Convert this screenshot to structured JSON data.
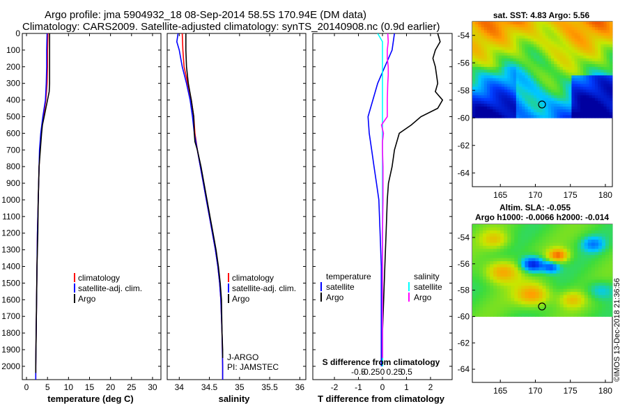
{
  "title_line1": "Argo profile: jma 5904932_18 08-Sep-2014 58.5S 170.94E (DM data)",
  "title_line2": "Climatology: CARS2009. Satellite-adjusted climatology: synTS_20140908.nc (0.9d earlier)",
  "depth_ticks": [
    "0",
    "100",
    "200",
    "300",
    "400",
    "500",
    "600",
    "700",
    "800",
    "900",
    "1000",
    "1100",
    "1200",
    "1300",
    "1400",
    "1500",
    "1600",
    "1700",
    "1800",
    "1900",
    "2000"
  ],
  "colors": {
    "climatology": "#ff0000",
    "satellite": "#0000ff",
    "argo": "#000000",
    "s_satellite": "#00ffff",
    "s_argo": "#ff00ff"
  },
  "chart_data": [
    {
      "type": "line",
      "xlabel": "temperature (deg C)",
      "xlim": [
        -1,
        32
      ],
      "xticks": [
        "0",
        "5",
        "10",
        "15",
        "20",
        "25",
        "30"
      ],
      "ylim": [
        2080,
        0
      ],
      "legend": {
        "items": [
          "climatology",
          "satellite-adj. clim.",
          "Argo"
        ]
      },
      "series": [
        {
          "name": "climatology",
          "y": [
            0,
            100,
            200,
            300,
            400,
            500,
            600,
            700,
            800,
            900,
            1000,
            1200,
            1400,
            1600,
            1800,
            2000,
            2080
          ],
          "values": [
            5.1,
            5.0,
            5.0,
            4.9,
            4.6,
            4.0,
            3.5,
            3.2,
            3.0,
            2.9,
            2.8,
            2.6,
            2.5,
            2.4,
            2.3,
            2.2,
            2.2
          ]
        },
        {
          "name": "satellite-adj. clim.",
          "y": [
            0,
            100,
            200,
            300,
            400,
            500,
            600,
            700,
            800,
            900,
            1000,
            1200,
            1400,
            1600,
            1800,
            2000,
            2080
          ],
          "values": [
            4.9,
            4.8,
            4.8,
            4.7,
            4.5,
            3.9,
            3.4,
            3.1,
            3.0,
            2.9,
            2.8,
            2.6,
            2.5,
            2.4,
            2.3,
            2.2,
            2.2
          ]
        },
        {
          "name": "Argo",
          "y": [
            0,
            50,
            100,
            150,
            200,
            300,
            350,
            400,
            450,
            500,
            550,
            600,
            700,
            800,
            900,
            1000,
            1200,
            1400,
            1600,
            1800,
            2000,
            2040
          ],
          "values": [
            5.5,
            5.5,
            5.5,
            5.5,
            5.5,
            5.5,
            5.4,
            5.0,
            4.6,
            4.2,
            3.8,
            3.6,
            3.3,
            3.0,
            2.9,
            2.8,
            2.7,
            2.5,
            2.4,
            2.3,
            2.2,
            2.2
          ]
        }
      ]
    },
    {
      "type": "line",
      "xlabel": "salinity",
      "xlim": [
        33.8,
        36.1
      ],
      "xticks": [
        "34",
        "34.5",
        "35",
        "35.5",
        "36"
      ],
      "ylim": [
        2080,
        0
      ],
      "legend": {
        "items": [
          "climatology",
          "satellite-adj. clim.",
          "Argo"
        ]
      },
      "annotations": [
        "J-ARGO",
        "PI: JAMSTEC"
      ],
      "series": [
        {
          "name": "climatology",
          "y": [
            0,
            100,
            200,
            300,
            400,
            500,
            600,
            700,
            800,
            900,
            1000,
            1100,
            1200,
            1300,
            1400,
            1500,
            1600,
            1800,
            2000,
            2080
          ],
          "values": [
            34.05,
            34.06,
            34.08,
            34.14,
            34.2,
            34.24,
            34.26,
            34.3,
            34.35,
            34.4,
            34.45,
            34.5,
            34.55,
            34.6,
            34.64,
            34.67,
            34.69,
            34.71,
            34.72,
            34.72
          ]
        },
        {
          "name": "satellite-adj. clim.",
          "y": [
            0,
            50,
            100,
            200,
            300,
            400,
            500,
            600,
            700,
            800,
            900,
            1000,
            1100,
            1200,
            1300,
            1400,
            1500,
            1600,
            1800,
            2000,
            2080
          ],
          "values": [
            33.98,
            33.96,
            34.0,
            34.05,
            34.12,
            34.18,
            34.22,
            34.25,
            34.3,
            34.35,
            34.4,
            34.45,
            34.5,
            34.55,
            34.6,
            34.64,
            34.67,
            34.69,
            34.71,
            34.72,
            34.72
          ]
        },
        {
          "name": "Argo",
          "y": [
            0,
            100,
            200,
            300,
            400,
            500,
            600,
            650,
            700,
            800,
            900,
            1000,
            1100,
            1200,
            1300,
            1400,
            1500,
            1600,
            1800,
            1900,
            1950
          ],
          "values": [
            34.11,
            34.11,
            34.12,
            34.15,
            34.2,
            34.24,
            34.25,
            34.26,
            34.3,
            34.36,
            34.41,
            34.46,
            34.51,
            34.56,
            34.61,
            34.65,
            34.68,
            34.7,
            34.71,
            34.72,
            34.72
          ]
        }
      ]
    },
    {
      "type": "line",
      "xlabel": "T difference from climatology",
      "xlabel2": "S difference from climatology",
      "xlim": [
        -2.9,
        2.9
      ],
      "xticks": [
        "-2",
        "-1",
        "0",
        "1",
        "2"
      ],
      "xticks_salinity": [
        "-0.5",
        "-0.25",
        "0",
        "0.25",
        "0.5"
      ],
      "ylim": [
        2080,
        0
      ],
      "legend_left": {
        "title": "temperature",
        "items": [
          "satellite",
          "Argo"
        ]
      },
      "legend_right": {
        "title": "salinity",
        "items": [
          "satellite",
          "Argo"
        ]
      },
      "series": [
        {
          "name": "temperature satellite",
          "y": [
            0,
            100,
            200,
            300,
            400,
            500,
            600,
            700,
            800,
            900,
            1000,
            1200,
            1400,
            1600,
            1800,
            2000
          ],
          "values": [
            0.5,
            0.4,
            0.1,
            -0.2,
            -0.4,
            -0.6,
            -0.55,
            -0.45,
            -0.35,
            -0.25,
            -0.15,
            -0.1,
            -0.05,
            -0.05,
            -0.05,
            -0.05
          ]
        },
        {
          "name": "temperature Argo",
          "y": [
            0,
            50,
            100,
            150,
            200,
            300,
            350,
            400,
            450,
            500,
            550,
            600,
            700,
            800,
            900,
            1000,
            1200,
            1400,
            1600,
            1800,
            2000
          ],
          "values": [
            2.3,
            2.4,
            2.2,
            2.1,
            2.2,
            2.3,
            2.2,
            2.5,
            2.3,
            1.6,
            1.2,
            0.7,
            0.5,
            0.4,
            0.25,
            0.2,
            0.15,
            0.1,
            0.05,
            0.0,
            0.0
          ]
        },
        {
          "name": "salinity satellite",
          "y": [
            0,
            50,
            100,
            200,
            300,
            400,
            600,
            800,
            1000,
            1200,
            1400,
            1600,
            1800,
            2000
          ],
          "values": [
            -0.1,
            0.0,
            0.0,
            0.0,
            0.0,
            0.0,
            0.0,
            0.0,
            0.0,
            0.0,
            0.0,
            0.0,
            0.0,
            0.0
          ]
        },
        {
          "name": "salinity Argo",
          "y": [
            0,
            50,
            100,
            150,
            200,
            250,
            300,
            400,
            500,
            550,
            600,
            650,
            700,
            800,
            900,
            1000,
            1200,
            1400,
            1600,
            1800,
            1950
          ],
          "values": [
            0.11,
            0.12,
            0.1,
            0.1,
            0.12,
            0.12,
            0.11,
            0.1,
            0.1,
            -0.02,
            0.02,
            0.0,
            0.0,
            0.01,
            0.01,
            0.01,
            0.0,
            0.0,
            0.0,
            0.0,
            0.0
          ]
        }
      ]
    },
    {
      "type": "heatmap",
      "title": "sat. SST: 4.83 Argo: 5.56",
      "xticks": [
        "165",
        "170",
        "175",
        "180"
      ],
      "yticks": [
        "-54",
        "-56",
        "-58",
        "-60",
        "-62",
        "-64"
      ],
      "xlim": [
        161,
        181
      ],
      "ylim": [
        -65,
        -53
      ],
      "marker": {
        "lon": 170.94,
        "lat": -58.5
      }
    },
    {
      "type": "heatmap",
      "title": "Altim. SLA: -0.055",
      "subtitle": "Argo h1000: -0.0066 h2000: -0.014",
      "xticks": [
        "165",
        "170",
        "175",
        "180"
      ],
      "yticks": [
        "-54",
        "-56",
        "-58",
        "-60",
        "-62",
        "-64"
      ],
      "xlim": [
        161,
        181
      ],
      "ylim": [
        -65,
        -53
      ],
      "marker": {
        "lon": 170.94,
        "lat": -58.5
      }
    }
  ],
  "credit": "©IMOS 13-Dec-2018 21:36:56"
}
